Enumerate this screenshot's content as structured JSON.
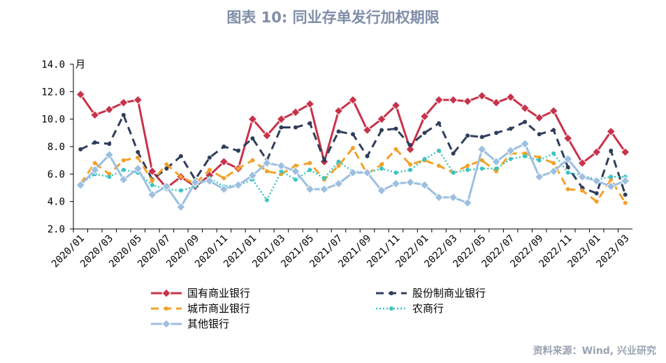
{
  "title": "图表 10: 同业存单发行加权期限",
  "source": "资料来源：Wind, 兴业研究",
  "chart_data": {
    "type": "line",
    "unit_label": "月",
    "ylim": [
      2.0,
      14.0
    ],
    "yticks": [
      "2.0",
      "4.0",
      "6.0",
      "8.0",
      "10.0",
      "12.0",
      "14.0"
    ],
    "xticks": [
      "2020/01",
      "2020/03",
      "2020/05",
      "2020/07",
      "2020/09",
      "2020/11",
      "2021/01",
      "2021/03",
      "2021/05",
      "2021/07",
      "2021/09",
      "2021/11",
      "2022/01",
      "2022/03",
      "2022/05",
      "2022/07",
      "2022/09",
      "2022/11",
      "2023/01",
      "2023/03"
    ],
    "x": [
      "2020/01",
      "2020/02",
      "2020/03",
      "2020/04",
      "2020/05",
      "2020/06",
      "2020/07",
      "2020/08",
      "2020/09",
      "2020/10",
      "2020/11",
      "2020/12",
      "2021/01",
      "2021/02",
      "2021/03",
      "2021/04",
      "2021/05",
      "2021/06",
      "2021/07",
      "2021/08",
      "2021/09",
      "2021/10",
      "2021/11",
      "2021/12",
      "2022/01",
      "2022/02",
      "2022/03",
      "2022/04",
      "2022/05",
      "2022/06",
      "2022/07",
      "2022/08",
      "2022/09",
      "2022/10",
      "2022/11",
      "2022/12",
      "2023/01",
      "2023/02",
      "2023/03"
    ],
    "series": [
      {
        "name": "国有商业银行",
        "color": "#c8334a",
        "style": "solid",
        "marker": "diamond",
        "values": [
          11.8,
          10.3,
          10.7,
          11.2,
          11.4,
          6.2,
          5.0,
          5.8,
          5.1,
          5.9,
          6.9,
          6.4,
          10.0,
          8.8,
          10.0,
          10.5,
          11.1,
          6.9,
          10.6,
          11.4,
          9.2,
          10.0,
          11.0,
          7.8,
          10.2,
          11.4,
          11.4,
          11.3,
          11.7,
          11.2,
          11.6,
          10.8,
          10.1,
          10.6,
          8.6,
          6.8,
          7.6,
          9.1,
          7.6
        ]
      },
      {
        "name": "股份制商业银行",
        "color": "#2f3e5c",
        "style": "dash",
        "marker": "dot",
        "values": [
          7.8,
          8.3,
          8.2,
          10.3,
          7.6,
          5.6,
          6.4,
          7.3,
          5.6,
          7.2,
          8.0,
          7.7,
          8.6,
          7.0,
          9.4,
          9.4,
          9.7,
          7.0,
          9.1,
          8.9,
          7.3,
          9.2,
          9.3,
          8.1,
          9.0,
          9.7,
          7.5,
          8.8,
          8.7,
          9.0,
          9.3,
          9.8,
          8.9,
          9.2,
          6.5,
          5.0,
          4.6,
          7.7,
          4.5
        ]
      },
      {
        "name": "城市商业银行",
        "color": "#f3a12a",
        "style": "dash",
        "marker": "dot",
        "values": [
          5.3,
          6.8,
          6.0,
          7.0,
          7.2,
          5.5,
          6.7,
          5.8,
          5.3,
          6.3,
          5.7,
          6.4,
          7.0,
          6.2,
          6.0,
          6.6,
          6.8,
          5.6,
          6.6,
          7.9,
          6.0,
          6.7,
          7.8,
          6.7,
          7.0,
          6.6,
          6.1,
          6.6,
          7.0,
          6.2,
          7.5,
          7.5,
          7.2,
          6.8,
          4.9,
          4.8,
          4.0,
          5.6,
          3.9
        ]
      },
      {
        "name": "农商行",
        "color": "#3cc4c1",
        "style": "dot",
        "marker": "dot",
        "values": [
          5.3,
          6.0,
          5.8,
          6.3,
          6.1,
          5.2,
          4.9,
          4.8,
          5.1,
          5.7,
          5.1,
          5.2,
          5.6,
          4.1,
          6.2,
          5.6,
          6.3,
          5.7,
          6.9,
          6.2,
          6.1,
          6.4,
          6.1,
          6.3,
          7.1,
          7.7,
          6.1,
          6.3,
          6.4,
          6.4,
          7.1,
          7.3,
          7.0,
          7.5,
          6.1,
          5.9,
          5.6,
          5.8,
          5.8
        ]
      },
      {
        "name": "其他银行",
        "color": "#9dbfe0",
        "style": "solid",
        "marker": "diamond",
        "values": [
          5.2,
          6.3,
          7.4,
          5.6,
          6.4,
          4.5,
          5.1,
          3.6,
          5.4,
          5.5,
          4.9,
          5.2,
          5.9,
          6.8,
          6.6,
          6.2,
          4.9,
          4.9,
          5.3,
          6.1,
          6.1,
          4.8,
          5.3,
          5.4,
          5.2,
          4.3,
          4.3,
          3.9,
          7.8,
          6.9,
          7.7,
          8.2,
          5.8,
          6.2,
          7.1,
          5.8,
          5.5,
          5.1,
          5.5
        ]
      }
    ]
  }
}
